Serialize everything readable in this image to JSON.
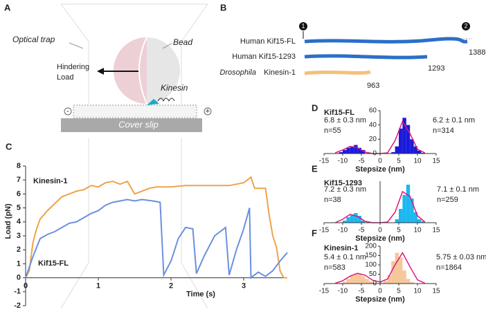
{
  "panel_a": {
    "panel": "A",
    "trap_label": "Optical trap",
    "bead_label": "Bead",
    "load_label": [
      "Hindering",
      "Load"
    ],
    "motor_label": "Kinesin",
    "minus_end": "-",
    "plus_end": "+",
    "surface_label": "Cover slip"
  },
  "panel_b": {
    "panel": "B",
    "markers": [
      1,
      2
    ],
    "constructs": [
      {
        "label": [
          "Human Kif15-FL"
        ],
        "length": 1388
      },
      {
        "label": [
          "Human Kif15-1293"
        ],
        "length": 1293
      },
      {
        "label": [
          "Drosophila",
          "Kinesin-1"
        ],
        "length": 963
      }
    ]
  },
  "chart_data": [
    {
      "type": "line",
      "panel": "C",
      "xlabel": "Time (s)",
      "ylabel": "Load (pN)",
      "xlim": [
        0,
        3.6
      ],
      "ylim": [
        -2,
        8
      ],
      "xticks": [
        0,
        1,
        2,
        3
      ],
      "yticks": [
        -2,
        -1,
        0,
        1,
        2,
        3,
        4,
        5,
        6,
        7,
        8
      ],
      "series": [
        {
          "name": "Kinesin-1",
          "color": "#f0a24a",
          "x": [
            0,
            0.05,
            0.1,
            0.15,
            0.2,
            0.3,
            0.4,
            0.5,
            0.6,
            0.7,
            0.8,
            0.9,
            1.0,
            1.1,
            1.2,
            1.3,
            1.4,
            1.5,
            1.6,
            1.7,
            1.8,
            2.0,
            2.2,
            2.4,
            2.6,
            2.8,
            3.0,
            3.1,
            3.15,
            3.2,
            3.3,
            3.35,
            3.4,
            3.45,
            3.5,
            3.55,
            3.6
          ],
          "values": [
            0,
            0.5,
            2.5,
            3.5,
            4.2,
            4.8,
            5.3,
            5.8,
            6.0,
            6.2,
            6.3,
            6.6,
            6.5,
            6.8,
            6.9,
            6.7,
            6.9,
            6.0,
            6.2,
            6.4,
            6.5,
            6.5,
            6.6,
            6.6,
            6.6,
            6.6,
            6.8,
            7.2,
            6.4,
            6.4,
            6.4,
            4.5,
            3.0,
            2.2,
            0.5,
            0,
            0
          ]
        },
        {
          "name": "Kif15-FL",
          "color": "#6a8fe0",
          "x": [
            0,
            0.1,
            0.2,
            0.3,
            0.4,
            0.5,
            0.6,
            0.7,
            0.8,
            0.9,
            1.0,
            1.1,
            1.2,
            1.3,
            1.4,
            1.5,
            1.6,
            1.75,
            1.85,
            1.9,
            2.0,
            2.1,
            2.2,
            2.3,
            2.35,
            2.45,
            2.6,
            2.75,
            2.8,
            2.9,
            3.0,
            3.08,
            3.1,
            3.2,
            3.3,
            3.4,
            3.5,
            3.6
          ],
          "values": [
            0,
            1.5,
            2.8,
            3.1,
            3.3,
            3.6,
            3.9,
            4.0,
            4.3,
            4.6,
            4.8,
            5.2,
            5.4,
            5.5,
            5.6,
            5.5,
            5.6,
            5.5,
            5.4,
            0.2,
            1.2,
            2.8,
            3.6,
            3.5,
            0.3,
            1.5,
            3.0,
            3.6,
            0.2,
            2.0,
            3.5,
            5.0,
            0,
            0.4,
            0.1,
            0.5,
            1.2,
            1.8
          ]
        }
      ]
    },
    {
      "type": "histogram",
      "panel": "D",
      "title": "Kif15-FL",
      "xlabel": "Stepsize (nm)",
      "color": "#1a1adb",
      "xlim": [
        -15,
        15
      ],
      "xticks": [
        -15,
        -10,
        -5,
        0,
        5,
        10,
        15
      ],
      "ylim": [
        0,
        60
      ],
      "yticks": [
        0,
        20,
        40,
        60
      ],
      "bins": [
        -12,
        -11,
        -10,
        -9,
        -8,
        -7,
        -6,
        -5,
        -4,
        -3,
        -2,
        -1,
        0,
        1,
        2,
        3,
        4,
        5,
        6,
        7,
        8,
        9,
        10,
        11,
        12
      ],
      "values": [
        0,
        2,
        5,
        8,
        10,
        12,
        8,
        5,
        0,
        0,
        0,
        0,
        0,
        0,
        0,
        2,
        10,
        35,
        50,
        40,
        20,
        10,
        4,
        1
      ],
      "fit": {
        "color": "#e0157a",
        "x": [
          -12,
          -10,
          -8,
          -6,
          -4,
          -2,
          0,
          2,
          4,
          6,
          8,
          10,
          12
        ],
        "values": [
          1,
          5,
          10,
          8,
          2,
          0,
          0,
          1,
          18,
          45,
          28,
          6,
          1
        ]
      },
      "annotations": [
        "6.8 ± 0.3 nm",
        "n=55",
        "6.2 ± 0.1 nm",
        "n=314"
      ]
    },
    {
      "type": "histogram",
      "panel": "E",
      "title": "Kif15-1293",
      "xlabel": "Stepsize (nm)",
      "color": "#1ab8f0",
      "xlim": [
        -15,
        15
      ],
      "xticks": [
        -15,
        -10,
        -5,
        0,
        5,
        10,
        15
      ],
      "ylim": [
        0,
        60
      ],
      "yticks": [],
      "bins": [
        -12,
        -11,
        -10,
        -9,
        -8,
        -7,
        -6,
        -5,
        -4,
        -3,
        -2,
        -1,
        0,
        1,
        2,
        3,
        4,
        5,
        6,
        7,
        8,
        9,
        10,
        11,
        12
      ],
      "values": [
        0,
        0,
        3,
        8,
        12,
        14,
        10,
        3,
        0,
        0,
        0,
        0,
        0,
        0,
        0,
        0,
        5,
        20,
        40,
        55,
        35,
        15,
        5,
        2
      ],
      "fit": {
        "color": "#e0157a",
        "x": [
          -12,
          -10,
          -8,
          -6,
          -4,
          -2,
          0,
          2,
          4,
          6,
          8,
          10,
          12
        ],
        "values": [
          0,
          5,
          12,
          9,
          2,
          0,
          0,
          1,
          15,
          45,
          38,
          10,
          1
        ]
      },
      "annotations": [
        "7.2 ± 0.3 nm",
        "n=38",
        "7.1 ± 0.1 nm",
        "n=259"
      ]
    },
    {
      "type": "histogram",
      "panel": "F",
      "title": "Kinesin-1",
      "xlabel": "Stepsize (nm)",
      "color": "#f5c79a",
      "xlim": [
        -15,
        15
      ],
      "xticks": [
        -15,
        -10,
        -5,
        0,
        5,
        10,
        15
      ],
      "ylim": [
        0,
        200
      ],
      "yticks": [
        0,
        50,
        100,
        150,
        200
      ],
      "bins": [
        -12,
        -11,
        -10,
        -9,
        -8,
        -7,
        -6,
        -5,
        -4,
        -3,
        -2,
        -1,
        0,
        1,
        2,
        3,
        4,
        5,
        6,
        7,
        8,
        9,
        10,
        11,
        12
      ],
      "values": [
        0,
        3,
        10,
        25,
        45,
        55,
        52,
        40,
        25,
        12,
        5,
        2,
        5,
        15,
        45,
        120,
        165,
        140,
        70,
        25,
        8,
        2,
        0,
        0
      ],
      "fit": {
        "color": "#e0157a",
        "x": [
          -12,
          -10,
          -8,
          -6,
          -4,
          -2,
          0,
          2,
          4,
          6,
          8,
          10,
          12
        ],
        "values": [
          2,
          15,
          40,
          55,
          45,
          18,
          8,
          25,
          100,
          165,
          90,
          20,
          2
        ]
      },
      "annotations": [
        "5.4 ± 0.1 nm",
        "n=583",
        "5.75 ± 0.03 nm",
        "n=1864"
      ]
    }
  ]
}
